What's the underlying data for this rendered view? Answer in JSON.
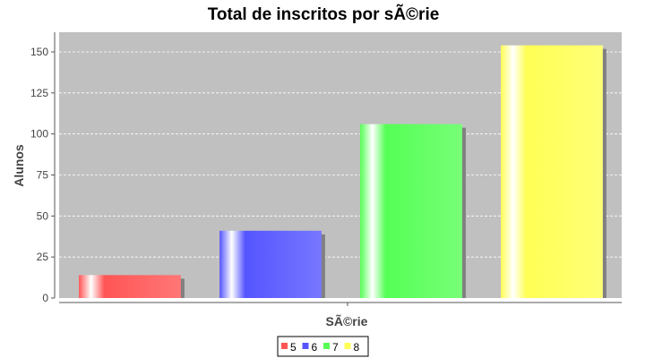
{
  "chart_data": {
    "type": "bar",
    "title": "Total de inscritos por sÃ©rie",
    "xlabel": "SÃ©rie",
    "ylabel": "Alunos",
    "ylim": [
      0,
      162
    ],
    "yticks": [
      0,
      25,
      50,
      75,
      100,
      125,
      150
    ],
    "grid": true,
    "legend": "bottom-center",
    "series": [
      {
        "name": "5",
        "value": 14,
        "color": "#ff5555"
      },
      {
        "name": "6",
        "value": 41,
        "color": "#5555ff"
      },
      {
        "name": "7",
        "value": 106,
        "color": "#55ff55"
      },
      {
        "name": "8",
        "value": 154,
        "color": "#ffff55"
      }
    ]
  }
}
